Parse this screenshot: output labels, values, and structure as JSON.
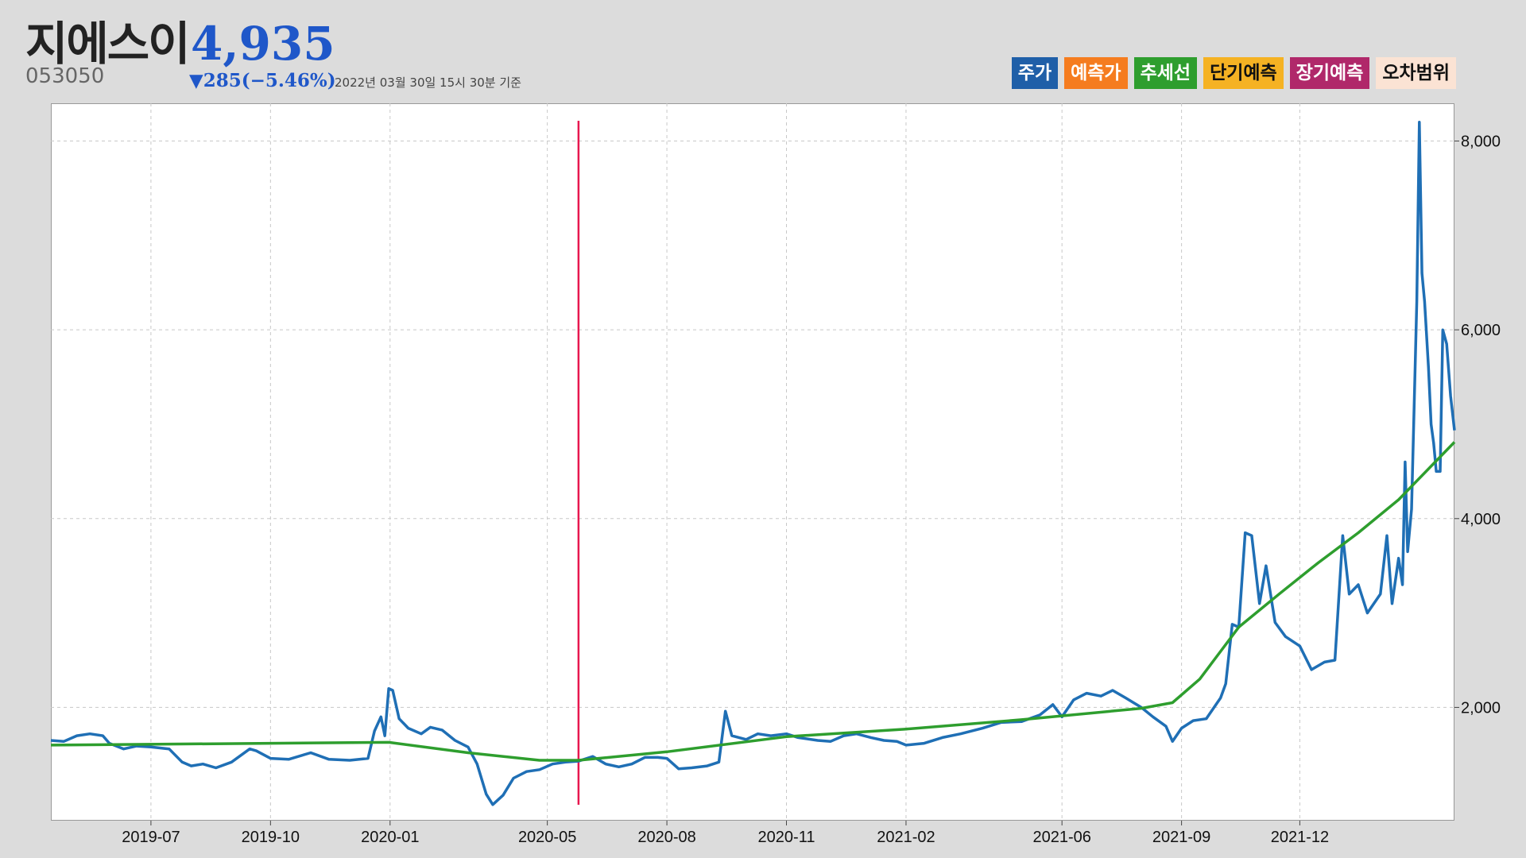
{
  "header": {
    "name": "지에스이",
    "price": "4,935",
    "code": "053050",
    "change": "▼285(−5.46%)",
    "as_of": "2022년 03월 30일 15시 30분 기준"
  },
  "legend": [
    {
      "label": "주가",
      "color": "#1f5fa8",
      "text_color": "#ffffff"
    },
    {
      "label": "예측가",
      "color": "#f57c1f",
      "text_color": "#ffffff"
    },
    {
      "label": "추세선",
      "color": "#2e9e2e",
      "text_color": "#ffffff"
    },
    {
      "label": "단기예측",
      "color": "#f5b223",
      "text_color": "#111111"
    },
    {
      "label": "장기예측",
      "color": "#b0286a",
      "text_color": "#ffffff"
    },
    {
      "label": "오차범위",
      "color": "#fbe3d4",
      "text_color": "#111111"
    }
  ],
  "chart_data": {
    "type": "line",
    "title": "",
    "xlabel": "",
    "ylabel": "",
    "x_range": [
      "2019-04-15",
      "2022-03-30"
    ],
    "ylim": [
      800,
      8400
    ],
    "y_ticks": [
      2000,
      4000,
      6000,
      8000
    ],
    "y_tick_labels": [
      "2,000",
      "4,000",
      "6,000",
      "8,000"
    ],
    "y_axis_side": "right",
    "x_ticks": [
      "2019-07-01",
      "2019-10-01",
      "2020-01-01",
      "2020-05-01",
      "2020-08-01",
      "2020-11-01",
      "2021-02-01",
      "2021-06-01",
      "2021-09-01",
      "2021-12-01"
    ],
    "x_tick_labels": [
      "2019-07",
      "2019-10",
      "2020-01",
      "2020-05",
      "2020-08",
      "2020-11",
      "2021-02",
      "2021-06",
      "2021-09",
      "2021-12"
    ],
    "grid": true,
    "vertical_marker": {
      "x": "2020-05-25",
      "color": "#e8174f"
    },
    "series": [
      {
        "name": "주가",
        "color": "#1f6fb5",
        "points": [
          [
            "2019-04-15",
            1650
          ],
          [
            "2019-04-25",
            1640
          ],
          [
            "2019-05-05",
            1700
          ],
          [
            "2019-05-15",
            1720
          ],
          [
            "2019-05-25",
            1700
          ],
          [
            "2019-05-30",
            1620
          ],
          [
            "2019-06-10",
            1560
          ],
          [
            "2019-06-20",
            1590
          ],
          [
            "2019-07-01",
            1580
          ],
          [
            "2019-07-15",
            1560
          ],
          [
            "2019-07-25",
            1420
          ],
          [
            "2019-08-01",
            1380
          ],
          [
            "2019-08-10",
            1400
          ],
          [
            "2019-08-20",
            1360
          ],
          [
            "2019-09-01",
            1420
          ],
          [
            "2019-09-15",
            1560
          ],
          [
            "2019-09-20",
            1540
          ],
          [
            "2019-10-01",
            1460
          ],
          [
            "2019-10-15",
            1450
          ],
          [
            "2019-11-01",
            1520
          ],
          [
            "2019-11-15",
            1450
          ],
          [
            "2019-12-01",
            1440
          ],
          [
            "2019-12-15",
            1460
          ],
          [
            "2019-12-20",
            1750
          ],
          [
            "2019-12-25",
            1900
          ],
          [
            "2019-12-28",
            1700
          ],
          [
            "2019-12-31",
            2200
          ],
          [
            "2020-01-03",
            2180
          ],
          [
            "2020-01-08",
            1880
          ],
          [
            "2020-01-15",
            1780
          ],
          [
            "2020-01-25",
            1720
          ],
          [
            "2020-02-01",
            1790
          ],
          [
            "2020-02-10",
            1760
          ],
          [
            "2020-02-20",
            1650
          ],
          [
            "2020-03-01",
            1580
          ],
          [
            "2020-03-08",
            1400
          ],
          [
            "2020-03-15",
            1080
          ],
          [
            "2020-03-20",
            970
          ],
          [
            "2020-03-28",
            1070
          ],
          [
            "2020-04-05",
            1250
          ],
          [
            "2020-04-15",
            1320
          ],
          [
            "2020-04-25",
            1340
          ],
          [
            "2020-05-05",
            1400
          ],
          [
            "2020-05-15",
            1420
          ],
          [
            "2020-05-25",
            1430
          ],
          [
            "2020-06-05",
            1480
          ],
          [
            "2020-06-15",
            1400
          ],
          [
            "2020-06-25",
            1370
          ],
          [
            "2020-07-05",
            1400
          ],
          [
            "2020-07-15",
            1470
          ],
          [
            "2020-07-25",
            1470
          ],
          [
            "2020-08-01",
            1460
          ],
          [
            "2020-08-10",
            1350
          ],
          [
            "2020-08-20",
            1360
          ],
          [
            "2020-09-01",
            1380
          ],
          [
            "2020-09-10",
            1420
          ],
          [
            "2020-09-15",
            1960
          ],
          [
            "2020-09-20",
            1700
          ],
          [
            "2020-10-01",
            1660
          ],
          [
            "2020-10-10",
            1720
          ],
          [
            "2020-10-20",
            1700
          ],
          [
            "2020-11-01",
            1720
          ],
          [
            "2020-11-10",
            1680
          ],
          [
            "2020-11-25",
            1650
          ],
          [
            "2020-12-05",
            1640
          ],
          [
            "2020-12-15",
            1700
          ],
          [
            "2020-12-25",
            1720
          ],
          [
            "2021-01-05",
            1680
          ],
          [
            "2021-01-15",
            1650
          ],
          [
            "2021-01-25",
            1640
          ],
          [
            "2021-02-01",
            1600
          ],
          [
            "2021-02-15",
            1620
          ],
          [
            "2021-03-01",
            1680
          ],
          [
            "2021-03-15",
            1720
          ],
          [
            "2021-04-01",
            1780
          ],
          [
            "2021-04-15",
            1840
          ],
          [
            "2021-05-01",
            1850
          ],
          [
            "2021-05-15",
            1920
          ],
          [
            "2021-05-25",
            2030
          ],
          [
            "2021-06-01",
            1900
          ],
          [
            "2021-06-10",
            2080
          ],
          [
            "2021-06-20",
            2150
          ],
          [
            "2021-07-01",
            2120
          ],
          [
            "2021-07-10",
            2180
          ],
          [
            "2021-07-20",
            2100
          ],
          [
            "2021-08-01",
            2000
          ],
          [
            "2021-08-10",
            1900
          ],
          [
            "2021-08-20",
            1800
          ],
          [
            "2021-08-25",
            1640
          ],
          [
            "2021-09-01",
            1780
          ],
          [
            "2021-09-10",
            1860
          ],
          [
            "2021-09-20",
            1880
          ],
          [
            "2021-10-01",
            2100
          ],
          [
            "2021-10-05",
            2250
          ],
          [
            "2021-10-10",
            2880
          ],
          [
            "2021-10-15",
            2850
          ],
          [
            "2021-10-20",
            3850
          ],
          [
            "2021-10-25",
            3820
          ],
          [
            "2021-10-31",
            3100
          ],
          [
            "2021-11-05",
            3500
          ],
          [
            "2021-11-12",
            2900
          ],
          [
            "2021-11-20",
            2750
          ],
          [
            "2021-12-01",
            2650
          ],
          [
            "2021-12-10",
            2400
          ],
          [
            "2021-12-20",
            2480
          ],
          [
            "2021-12-28",
            2500
          ],
          [
            "2022-01-03",
            3820
          ],
          [
            "2022-01-08",
            3200
          ],
          [
            "2022-01-15",
            3300
          ],
          [
            "2022-01-22",
            3000
          ],
          [
            "2022-02-01",
            3200
          ],
          [
            "2022-02-06",
            3820
          ],
          [
            "2022-02-10",
            3100
          ],
          [
            "2022-02-15",
            3580
          ],
          [
            "2022-02-18",
            3300
          ],
          [
            "2022-02-20",
            4600
          ],
          [
            "2022-02-22",
            3650
          ],
          [
            "2022-02-25",
            4100
          ],
          [
            "2022-03-01",
            6300
          ],
          [
            "2022-03-03",
            8200
          ],
          [
            "2022-03-05",
            6600
          ],
          [
            "2022-03-07",
            6300
          ],
          [
            "2022-03-10",
            5600
          ],
          [
            "2022-03-12",
            5000
          ],
          [
            "2022-03-14",
            4800
          ],
          [
            "2022-03-16",
            4500
          ],
          [
            "2022-03-19",
            4500
          ],
          [
            "2022-03-21",
            6000
          ],
          [
            "2022-03-24",
            5850
          ],
          [
            "2022-03-27",
            5300
          ],
          [
            "2022-03-30",
            4935
          ]
        ]
      },
      {
        "name": "추세선",
        "color": "#2e9e2e",
        "points": [
          [
            "2019-04-15",
            1600
          ],
          [
            "2019-10-01",
            1620
          ],
          [
            "2019-12-31",
            1630
          ],
          [
            "2020-03-01",
            1520
          ],
          [
            "2020-04-25",
            1440
          ],
          [
            "2020-05-25",
            1440
          ],
          [
            "2020-08-01",
            1530
          ],
          [
            "2020-11-01",
            1690
          ],
          [
            "2021-02-01",
            1770
          ],
          [
            "2021-05-01",
            1870
          ],
          [
            "2021-08-01",
            1990
          ],
          [
            "2021-08-25",
            2050
          ],
          [
            "2021-09-15",
            2300
          ],
          [
            "2021-10-15",
            2850
          ],
          [
            "2021-11-15",
            3200
          ],
          [
            "2021-12-15",
            3530
          ],
          [
            "2022-01-15",
            3850
          ],
          [
            "2022-02-15",
            4200
          ],
          [
            "2022-03-30",
            4810
          ]
        ]
      }
    ]
  }
}
